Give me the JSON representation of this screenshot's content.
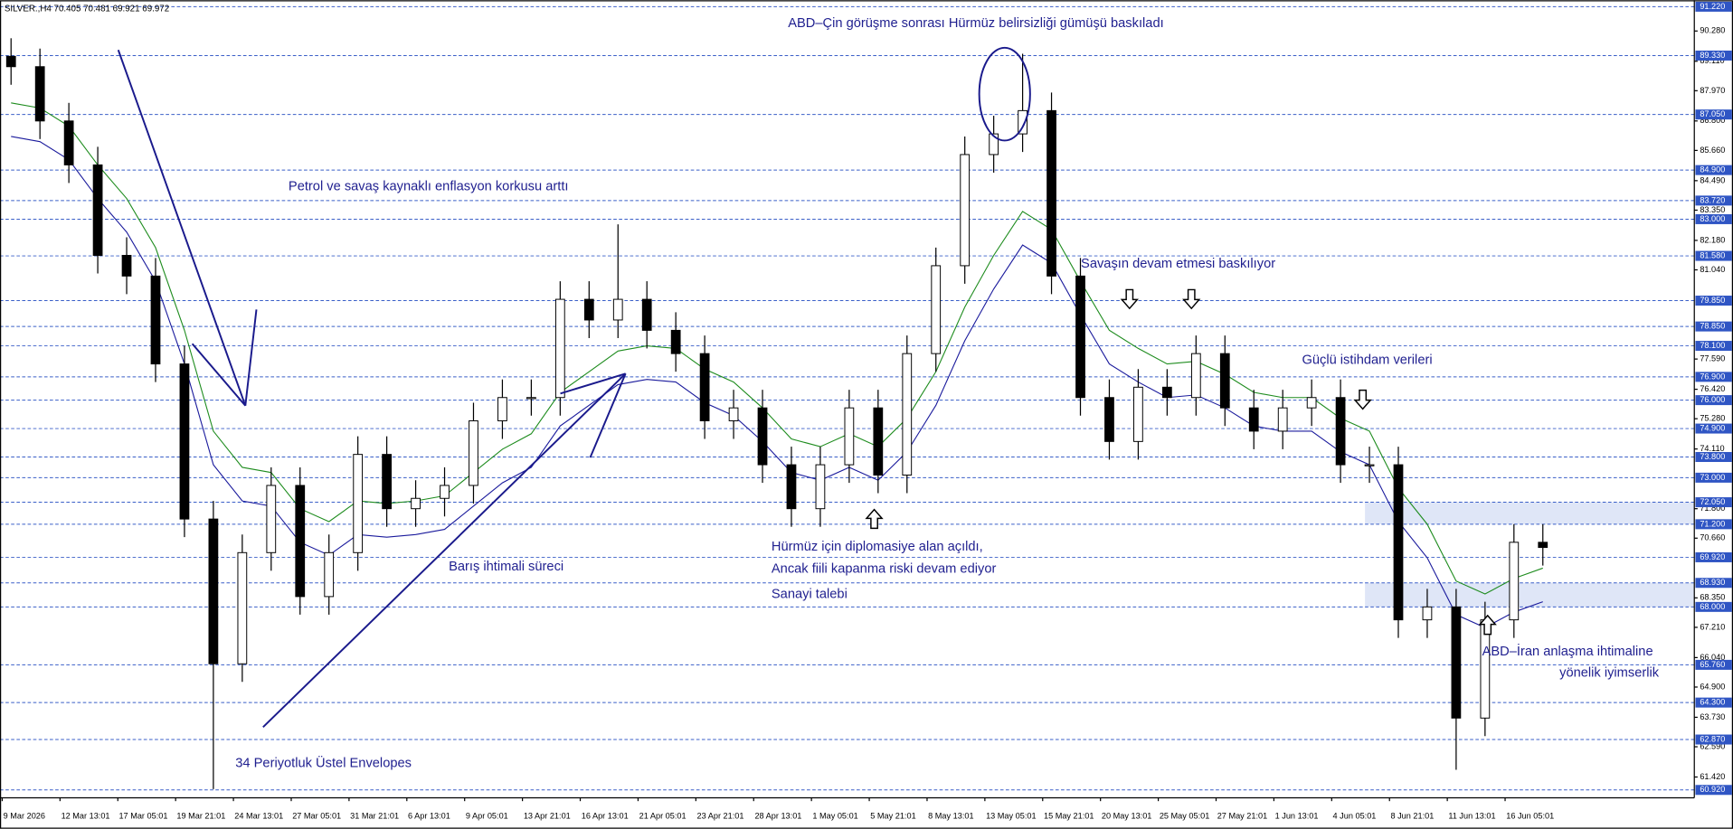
{
  "chart_data": {
    "type": "candlestick",
    "symbol_info": "SILVER.,H4  70.405 70.481 69.921 69.972",
    "categories": [
      "9 Mar 2026",
      null,
      "12 Mar 13:01",
      null,
      "17 Mar 05:01",
      null,
      "19 Mar 21:01",
      null,
      "24 Mar 13:01",
      null,
      "27 Mar 05:01",
      null,
      "31 Mar 21:01",
      null,
      "6 Apr 13:01",
      null,
      "9 Apr 05:01",
      null,
      "13 Apr 21:01",
      null,
      "16 Apr 13:01",
      null,
      "21 Apr 05:01",
      null,
      "23 Apr 21:01",
      null,
      "28 Apr 13:01",
      null,
      "1 May 05:01",
      null,
      "5 May 21:01",
      null,
      "8 May 13:01",
      null,
      "13 May 05:01",
      null,
      "15 May 21:01",
      null,
      "20 May 13:01",
      null,
      "25 May 05:01",
      null,
      "27 May 21:01",
      null,
      "1 Jun 13:01",
      null,
      "4 Jun 05:01",
      null,
      "8 Jun 21:01",
      null,
      "11 Jun 13:01",
      null,
      "16 Jun 05:01",
      null
    ],
    "open": [
      89.3,
      88.9,
      86.8,
      85.1,
      81.6,
      80.8,
      77.4,
      71.4,
      65.8,
      70.1,
      72.7,
      68.4,
      70.1,
      73.9,
      71.8,
      72.2,
      72.7,
      75.2,
      76.1,
      76.1,
      79.9,
      79.1,
      79.9,
      78.7,
      77.8,
      75.2,
      75.7,
      73.5,
      71.8,
      73.5,
      75.7,
      73.1,
      77.8,
      81.2,
      85.5,
      86.3,
      87.2,
      80.8,
      76.1,
      74.4,
      76.5,
      76.1,
      77.8,
      75.7,
      74.8,
      75.7,
      76.1,
      73.5,
      73.5,
      67.5,
      68.0,
      63.7,
      67.5,
      70.5
    ],
    "high": [
      90.0,
      89.6,
      87.5,
      85.8,
      82.3,
      81.5,
      78.1,
      72.1,
      70.8,
      73.4,
      73.4,
      70.8,
      74.6,
      74.6,
      72.9,
      73.4,
      75.9,
      76.8,
      76.8,
      80.6,
      80.6,
      82.8,
      80.6,
      79.4,
      78.5,
      76.4,
      76.4,
      74.2,
      74.2,
      76.4,
      76.4,
      78.5,
      81.9,
      86.2,
      87.0,
      89.4,
      87.9,
      81.5,
      76.8,
      77.2,
      77.2,
      78.5,
      78.5,
      76.4,
      76.4,
      76.8,
      76.8,
      74.2,
      74.2,
      68.7,
      68.7,
      68.2,
      71.2,
      71.2
    ],
    "low": [
      88.2,
      86.1,
      84.4,
      80.9,
      80.1,
      76.7,
      70.7,
      60.95,
      65.1,
      69.4,
      67.7,
      67.7,
      69.4,
      71.1,
      71.1,
      71.5,
      72.0,
      74.5,
      75.4,
      75.4,
      78.4,
      78.4,
      78.0,
      77.1,
      74.5,
      74.5,
      72.8,
      71.1,
      71.1,
      72.8,
      72.4,
      72.4,
      77.1,
      80.5,
      84.8,
      85.6,
      80.1,
      75.4,
      73.7,
      73.7,
      75.4,
      75.4,
      75.0,
      74.1,
      74.1,
      75.0,
      72.8,
      72.8,
      66.8,
      66.8,
      61.7,
      63.0,
      66.8,
      69.6
    ],
    "close": [
      88.9,
      86.8,
      85.1,
      81.6,
      80.8,
      77.4,
      71.4,
      65.8,
      70.1,
      72.7,
      68.4,
      70.1,
      73.9,
      71.8,
      72.2,
      72.7,
      75.2,
      76.1,
      76.1,
      79.9,
      79.1,
      79.9,
      78.7,
      77.8,
      75.2,
      75.7,
      73.5,
      71.8,
      73.5,
      75.7,
      73.1,
      77.8,
      81.2,
      85.5,
      86.3,
      87.2,
      80.8,
      76.1,
      74.4,
      76.5,
      76.1,
      77.8,
      75.7,
      74.8,
      75.7,
      76.1,
      73.5,
      73.5,
      67.5,
      68.0,
      63.7,
      67.5,
      70.5,
      70.3
    ],
    "envelopes": [
      {
        "color": "#1e8c1e",
        "values": [
          87.5,
          87.3,
          86.6,
          85.1,
          83.8,
          81.9,
          78.7,
          74.8,
          73.4,
          73.2,
          71.8,
          71.3,
          72.1,
          72.0,
          72.1,
          72.3,
          73.2,
          74.1,
          74.7,
          76.3,
          77.1,
          77.9,
          78.1,
          78.0,
          77.2,
          76.7,
          75.7,
          74.5,
          74.2,
          74.7,
          74.2,
          75.3,
          77.1,
          79.6,
          81.6,
          83.3,
          82.6,
          80.6,
          78.7,
          78.0,
          77.4,
          77.5,
          77.0,
          76.3,
          76.1,
          76.1,
          75.3,
          74.8,
          72.6,
          71.2,
          69.0,
          68.5,
          69.1,
          69.5
        ]
      },
      {
        "color": "#1a1a9c",
        "values": [
          86.2,
          86.0,
          85.3,
          83.8,
          82.5,
          80.6,
          77.4,
          73.5,
          72.1,
          71.9,
          70.5,
          70.0,
          70.8,
          70.7,
          70.8,
          71.0,
          71.9,
          72.8,
          73.4,
          75.0,
          75.8,
          76.6,
          76.8,
          76.7,
          75.9,
          75.4,
          74.4,
          73.2,
          72.9,
          73.4,
          72.9,
          74.0,
          75.8,
          78.3,
          80.3,
          82.0,
          81.3,
          79.3,
          77.4,
          76.7,
          76.1,
          76.2,
          75.7,
          75.0,
          74.8,
          74.8,
          74.0,
          73.5,
          71.3,
          69.9,
          67.7,
          67.2,
          67.8,
          68.2
        ]
      }
    ],
    "ylim": [
      60.7,
      91.47
    ],
    "yticks": [
      {
        "value": 90.28,
        "label": "90.280"
      },
      {
        "value": 89.11,
        "label": "89.110"
      },
      {
        "value": 87.97,
        "label": "87.970"
      },
      {
        "value": 86.8,
        "label": "86.800"
      },
      {
        "value": 85.66,
        "label": "85.660"
      },
      {
        "value": 84.49,
        "label": "84.490"
      },
      {
        "value": 83.35,
        "label": "83.350"
      },
      {
        "value": 82.18,
        "label": "82.180"
      },
      {
        "value": 81.04,
        "label": "81.040"
      },
      {
        "value": 77.59,
        "label": "77.590"
      },
      {
        "value": 76.42,
        "label": "76.420"
      },
      {
        "value": 75.28,
        "label": "75.280"
      },
      {
        "value": 74.11,
        "label": "74.110"
      },
      {
        "value": 71.8,
        "label": "71.800"
      },
      {
        "value": 70.66,
        "label": "70.660"
      },
      {
        "value": 68.35,
        "label": "68.350"
      },
      {
        "value": 67.21,
        "label": "67.210"
      },
      {
        "value": 66.04,
        "label": "66.040"
      },
      {
        "value": 64.9,
        "label": "64.900"
      },
      {
        "value": 63.73,
        "label": "63.730"
      },
      {
        "value": 62.59,
        "label": "62.590"
      },
      {
        "value": 61.42,
        "label": "61.420"
      }
    ],
    "levels": [
      {
        "value": 91.22,
        "label": "91.220"
      },
      {
        "value": 89.33,
        "label": "89.330"
      },
      {
        "value": 87.05,
        "label": "87.050"
      },
      {
        "value": 84.9,
        "label": "84.900"
      },
      {
        "value": 83.72,
        "label": "83.720"
      },
      {
        "value": 83.0,
        "label": "83.000"
      },
      {
        "value": 81.58,
        "label": "81.580"
      },
      {
        "value": 79.85,
        "label": "79.850"
      },
      {
        "value": 78.85,
        "label": "78.850"
      },
      {
        "value": 78.1,
        "label": "78.100"
      },
      {
        "value": 76.9,
        "label": "76.900"
      },
      {
        "value": 76.0,
        "label": "76.000"
      },
      {
        "value": 74.9,
        "label": "74.900"
      },
      {
        "value": 73.8,
        "label": "73.800"
      },
      {
        "value": 73.0,
        "label": "73.000"
      },
      {
        "value": 72.05,
        "label": "72.050"
      },
      {
        "value": 71.2,
        "label": "71.200"
      },
      {
        "value": 69.92,
        "label": "69.920"
      },
      {
        "value": 68.93,
        "label": "68.930"
      },
      {
        "value": 68.0,
        "label": "68.000"
      },
      {
        "value": 65.76,
        "label": "65.760"
      },
      {
        "value": 64.3,
        "label": "64.300"
      },
      {
        "value": 62.87,
        "label": "62.870"
      },
      {
        "value": 60.92,
        "label": "60.920"
      }
    ],
    "annotations": [
      "ABD–Çin görüşme sonrası Hürmüz belirsizliği gümüşü baskıladı",
      "Petrol ve savaş kaynaklı enflasyon korkusu arttı",
      "Savaşın devam etmesi baskılıyor",
      "Güçlü istihdam verileri",
      "Hürmüz için diplomasiye alan açıldı,",
      "Ancak fiili kapanma riski devam ediyor",
      "Barış ihtimali süreci",
      "Sanayi talebi",
      "ABD–İran anlaşma ihtimaline",
      "yönelik iyimserlik",
      "34 Periyotluk Üstel Envelopes"
    ]
  }
}
